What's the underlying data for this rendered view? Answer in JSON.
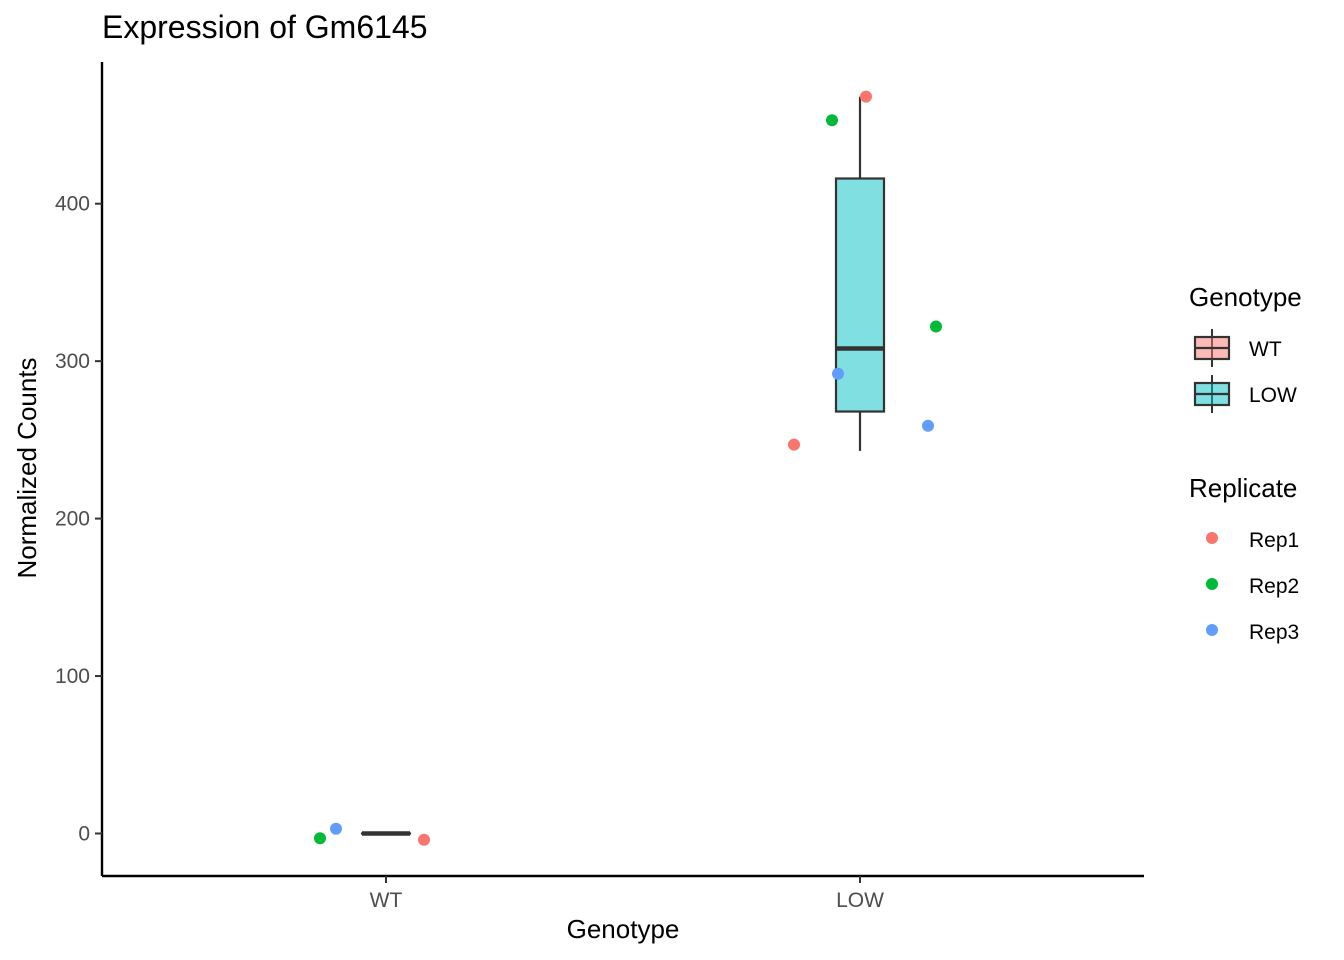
{
  "chart_data": {
    "type": "box",
    "title": "Expression of Gm6145",
    "xlabel": "Genotype",
    "ylabel": "Normalized Counts",
    "categories": [
      "WT",
      "LOW"
    ],
    "ylim": [
      -27,
      490
    ],
    "yticks": [
      0,
      100,
      200,
      300,
      400
    ],
    "grid": false,
    "boxes": [
      {
        "category": "WT",
        "q1": 0,
        "median": 0,
        "q3": 0,
        "whisker_low": 0,
        "whisker_high": 0,
        "fill": "#F8766D"
      },
      {
        "category": "LOW",
        "q1": 268,
        "median": 308,
        "q3": 416,
        "whisker_low": 243,
        "whisker_high": 468,
        "fill": "#00BFC4"
      }
    ],
    "points": [
      {
        "category": "WT",
        "replicate": "Rep1",
        "y": -4
      },
      {
        "category": "WT",
        "replicate": "Rep2",
        "y": -3
      },
      {
        "category": "WT",
        "replicate": "Rep3",
        "y": 3
      },
      {
        "category": "LOW",
        "replicate": "Rep1",
        "y": 468
      },
      {
        "category": "LOW",
        "replicate": "Rep2",
        "y": 453
      },
      {
        "category": "LOW",
        "replicate": "Rep3",
        "y": 292
      },
      {
        "category": "LOW",
        "replicate": "Rep2",
        "y": 322
      },
      {
        "category": "LOW",
        "replicate": "Rep3",
        "y": 259
      },
      {
        "category": "LOW",
        "replicate": "Rep1",
        "y": 247
      }
    ],
    "legends": [
      {
        "title": "Genotype",
        "kind": "box",
        "items": [
          {
            "label": "WT",
            "color": "#F8766D"
          },
          {
            "label": "LOW",
            "color": "#00BFC4"
          }
        ]
      },
      {
        "title": "Replicate",
        "kind": "point",
        "items": [
          {
            "label": "Rep1",
            "color": "#F8766D"
          },
          {
            "label": "Rep2",
            "color": "#00BA38"
          },
          {
            "label": "Rep3",
            "color": "#619CFF"
          }
        ]
      }
    ],
    "legend_position": "right"
  }
}
